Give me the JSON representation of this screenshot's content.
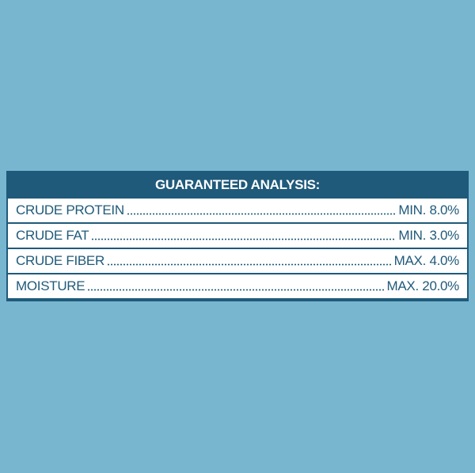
{
  "table": {
    "title": "GUARANTEED ANALYSIS:",
    "rows": [
      [
        "CRUDE PROTEIN",
        "MIN. 8.0%"
      ],
      [
        "CRUDE FAT",
        "MIN. 3.0%"
      ],
      [
        "CRUDE FIBER",
        "MAX. 4.0%"
      ],
      [
        "MOISTURE",
        "MAX. 20.0%"
      ]
    ]
  }
}
